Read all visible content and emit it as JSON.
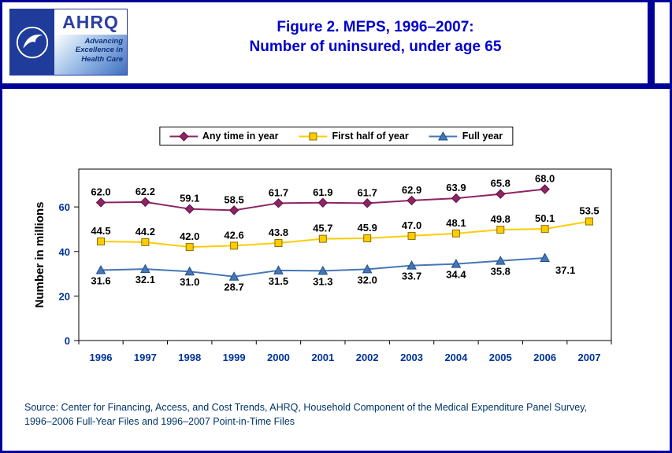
{
  "page": {
    "title_line1": "Figure 2. MEPS, 1996–2007:",
    "title_line2": "Number of uninsured, under age 65",
    "source_line1": "Source: Center for Financing, Access, and Cost Trends, AHRQ, Household Component of the Medical Expenditure Panel Survey,",
    "source_line2": "1996–2006 Full-Year Files and 1996–2007 Point-in-Time Files"
  },
  "logo": {
    "org_acronym": "AHRQ",
    "tagline": [
      "Advancing",
      "Excellence in",
      "Health Care"
    ]
  },
  "colors": {
    "title": "#0000CC",
    "axis_tick_labels": "#003399",
    "value_labels": "#000000",
    "source_text": "#003366",
    "accent_bar": "#000099",
    "page_border": "#000099",
    "plot_border": "#000000"
  },
  "chart_data": {
    "type": "line",
    "title": "Figure 2. MEPS, 1996–2007: Number of uninsured, under age 65",
    "ylabel": "Number in millions",
    "categories": [
      "1996",
      "1997",
      "1998",
      "1999",
      "2000",
      "2001",
      "2002",
      "2003",
      "2004",
      "2005",
      "2006",
      "2007"
    ],
    "ylim": [
      0,
      77
    ],
    "yticks": [
      0,
      20,
      40,
      60
    ],
    "grid": false,
    "legend_position": "top",
    "series": [
      {
        "name": "Any time in year",
        "marker": "diamond",
        "color": "#8E2463",
        "marker_stroke": "#5E1040",
        "label_position": "above",
        "values": [
          62.0,
          62.2,
          59.1,
          58.5,
          61.7,
          61.9,
          61.7,
          62.9,
          63.9,
          65.8,
          68.0,
          null
        ]
      },
      {
        "name": "First half of year",
        "marker": "square",
        "color": "#FFCC00",
        "marker_stroke": "#8A7000",
        "label_position": "above",
        "values": [
          44.5,
          44.2,
          42.0,
          42.6,
          43.8,
          45.7,
          45.9,
          47.0,
          48.1,
          49.8,
          50.1,
          53.5
        ]
      },
      {
        "name": "Full year",
        "marker": "triangle",
        "color": "#4576B5",
        "marker_stroke": "#1F4E8C",
        "label_position": "below",
        "values": [
          31.6,
          32.1,
          31.0,
          28.7,
          31.5,
          31.3,
          32.0,
          33.7,
          34.4,
          35.8,
          37.1,
          null
        ],
        "label_offsets": {
          "10": [
            26,
            2
          ]
        }
      }
    ]
  }
}
